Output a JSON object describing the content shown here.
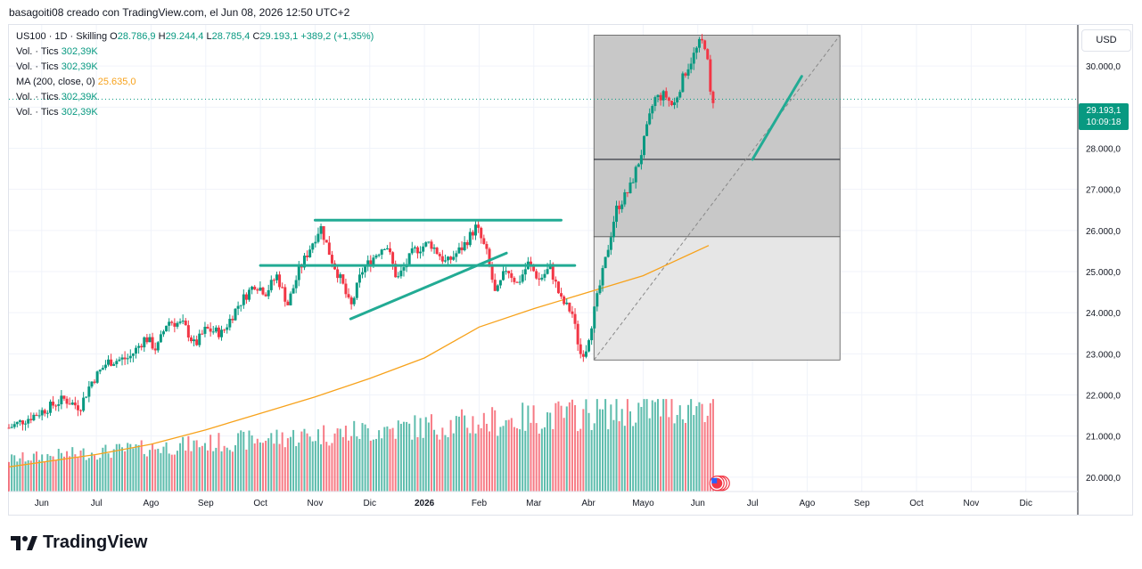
{
  "header": {
    "caption": "basagoiti08 creado con TradingView.com, el Jun 08, 2026 12:50 UTC+2"
  },
  "legend": {
    "symbol_line": {
      "prefix": "US100 · 1D · Skilling",
      "o_label": "O",
      "o": "28.786,9",
      "h_label": "H",
      "h": "29.244,4",
      "l_label": "L",
      "l": "28.785,4",
      "c_label": "C",
      "c": "29.193,1",
      "change": "+389,2 (+1,35%)"
    },
    "vol_rows": [
      {
        "label": "Vol. · Tics",
        "value": "302,39K"
      },
      {
        "label": "Vol. · Tics",
        "value": "302,39K"
      }
    ],
    "ma_row": {
      "label": "MA (200, close, 0)",
      "value": "25.635,0"
    },
    "vol_rows_2": [
      {
        "label": "Vol. · Tics",
        "value": "302,39K"
      },
      {
        "label": "Vol. · Tics",
        "value": "302,39K"
      }
    ]
  },
  "price_axis": {
    "currency": "USD",
    "last_price": "29.193,1",
    "countdown": "10:09:18"
  },
  "brand": {
    "name": "TradingView"
  },
  "colors": {
    "up": "#089981",
    "down": "#f23645",
    "ma": "#f7a21b",
    "drawing": "#22ab94",
    "box_dark": "#c8c8c8",
    "box_light": "#e6e6e6"
  },
  "chart_data": {
    "type": "candlestick",
    "symbol": "US100",
    "interval": "1D",
    "y_axis": {
      "ticks": [
        20000,
        21000,
        22000,
        23000,
        24000,
        25000,
        26000,
        27000,
        28000,
        29000,
        30000
      ],
      "tick_labels": [
        "20.000,0",
        "21.000,0",
        "22.000,0",
        "23.000,0",
        "24.000,0",
        "25.000,0",
        "26.000,0",
        "27.000,0",
        "28.000,0",
        "29.000,0",
        "30.000,0"
      ],
      "range": [
        19650,
        31000
      ]
    },
    "x_axis": {
      "labels": [
        "Jun",
        "Jul",
        "Ago",
        "Sep",
        "Oct",
        "Nov",
        "Dic",
        "2026",
        "Feb",
        "Mar",
        "Abr",
        "Mayo",
        "Jun",
        "Jul",
        "Ago",
        "Sep",
        "Oct",
        "Nov",
        "Dic"
      ],
      "label_months": [
        0,
        1,
        2,
        3,
        4,
        5,
        6,
        7,
        8,
        9,
        10,
        11,
        12,
        13,
        14,
        15,
        16,
        17,
        18
      ],
      "range_months": [
        -0.6,
        18.95
      ]
    },
    "close_path": [
      {
        "m": -0.6,
        "v": 21200
      },
      {
        "m": 0.0,
        "v": 21600
      },
      {
        "m": 0.4,
        "v": 21900
      },
      {
        "m": 0.7,
        "v": 21700
      },
      {
        "m": 0.9,
        "v": 22300
      },
      {
        "m": 1.2,
        "v": 22800
      },
      {
        "m": 1.6,
        "v": 22900
      },
      {
        "m": 1.9,
        "v": 23400
      },
      {
        "m": 2.1,
        "v": 23100
      },
      {
        "m": 2.3,
        "v": 23800
      },
      {
        "m": 2.6,
        "v": 23700
      },
      {
        "m": 2.8,
        "v": 23200
      },
      {
        "m": 3.0,
        "v": 23600
      },
      {
        "m": 3.3,
        "v": 23500
      },
      {
        "m": 3.6,
        "v": 24200
      },
      {
        "m": 3.9,
        "v": 24700
      },
      {
        "m": 4.1,
        "v": 24500
      },
      {
        "m": 4.3,
        "v": 24900
      },
      {
        "m": 4.5,
        "v": 24200
      },
      {
        "m": 4.7,
        "v": 25000
      },
      {
        "m": 4.95,
        "v": 25700
      },
      {
        "m": 5.1,
        "v": 26100
      },
      {
        "m": 5.3,
        "v": 25300
      },
      {
        "m": 5.5,
        "v": 24700
      },
      {
        "m": 5.65,
        "v": 24100
      },
      {
        "m": 5.85,
        "v": 25000
      },
      {
        "m": 6.1,
        "v": 25400
      },
      {
        "m": 6.3,
        "v": 25700
      },
      {
        "m": 6.5,
        "v": 24800
      },
      {
        "m": 6.8,
        "v": 25500
      },
      {
        "m": 7.1,
        "v": 25700
      },
      {
        "m": 7.4,
        "v": 25200
      },
      {
        "m": 7.7,
        "v": 25600
      },
      {
        "m": 7.95,
        "v": 26100
      },
      {
        "m": 8.15,
        "v": 25400
      },
      {
        "m": 8.3,
        "v": 24400
      },
      {
        "m": 8.5,
        "v": 25100
      },
      {
        "m": 8.7,
        "v": 24700
      },
      {
        "m": 8.9,
        "v": 25200
      },
      {
        "m": 9.1,
        "v": 24800
      },
      {
        "m": 9.3,
        "v": 25100
      },
      {
        "m": 9.5,
        "v": 24300
      },
      {
        "m": 9.7,
        "v": 24000
      },
      {
        "m": 9.85,
        "v": 23000
      },
      {
        "m": 9.95,
        "v": 23100
      },
      {
        "m": 10.1,
        "v": 24000
      },
      {
        "m": 10.3,
        "v": 25200
      },
      {
        "m": 10.5,
        "v": 26500
      },
      {
        "m": 10.75,
        "v": 27000
      },
      {
        "m": 10.95,
        "v": 27800
      },
      {
        "m": 11.2,
        "v": 29200
      },
      {
        "m": 11.4,
        "v": 29300
      },
      {
        "m": 11.55,
        "v": 29000
      },
      {
        "m": 11.75,
        "v": 29800
      },
      {
        "m": 12.05,
        "v": 30600
      },
      {
        "m": 12.15,
        "v": 30500
      },
      {
        "m": 12.25,
        "v": 29000
      },
      {
        "m": 12.28,
        "v": 29193
      }
    ],
    "ma200_path": [
      {
        "m": -0.6,
        "v": 20250
      },
      {
        "m": 1.0,
        "v": 20550
      },
      {
        "m": 2.0,
        "v": 20800
      },
      {
        "m": 3.0,
        "v": 21150
      },
      {
        "m": 4.0,
        "v": 21550
      },
      {
        "m": 5.0,
        "v": 21950
      },
      {
        "m": 6.0,
        "v": 22400
      },
      {
        "m": 7.0,
        "v": 22900
      },
      {
        "m": 8.0,
        "v": 23650
      },
      {
        "m": 9.0,
        "v": 24100
      },
      {
        "m": 10.0,
        "v": 24500
      },
      {
        "m": 11.0,
        "v": 24900
      },
      {
        "m": 12.2,
        "v": 25635
      }
    ],
    "volume": {
      "ymax": 21900,
      "pattern": "bars rising from ~20300 to ~21900 in price-axis units"
    },
    "drawings": {
      "resistance_top": {
        "m1": 5.0,
        "v1": 26250,
        "m2": 9.5,
        "v2": 26250
      },
      "support_mid": {
        "m1": 4.0,
        "v1": 25150,
        "m2": 9.75,
        "v2": 25150
      },
      "rising_line": {
        "m1": 5.65,
        "v1": 23850,
        "m2": 8.5,
        "v2": 25450
      },
      "projection": {
        "m1": 13.0,
        "v1": 27730,
        "m2": 13.9,
        "v2": 29750
      }
    },
    "boxes": {
      "upper": {
        "m1": 10.1,
        "m2": 14.6,
        "v1": 25850,
        "v2": 30750
      },
      "lower": {
        "m1": 10.1,
        "m2": 14.6,
        "v1": 22850,
        "v2": 25850
      },
      "mid_line": 27730,
      "diagonal": {
        "m1": 10.1,
        "v1": 22850,
        "m2": 14.6,
        "v2": 30750
      }
    },
    "last_price_line": 29193
  }
}
